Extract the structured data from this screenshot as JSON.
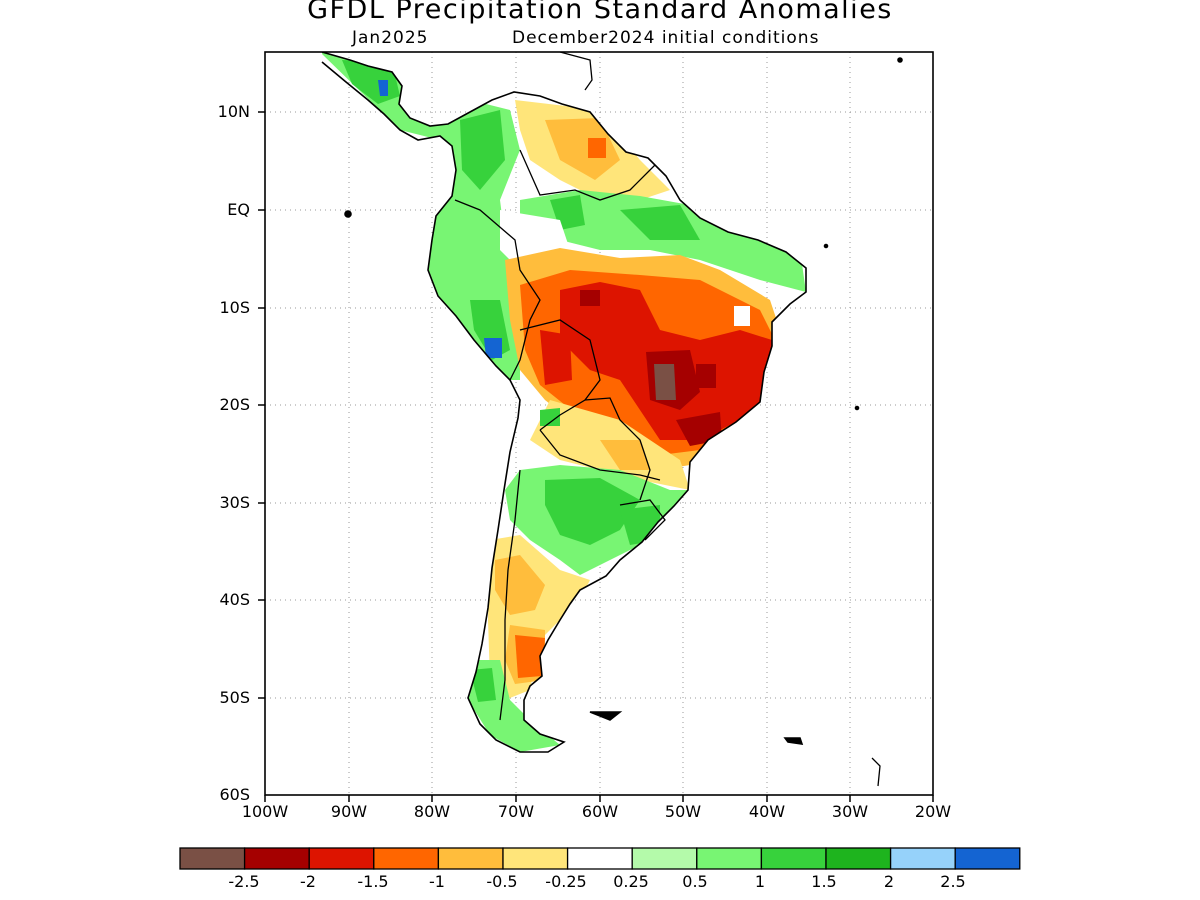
{
  "header": {
    "title": "GFDL Precipitation Standard Anomalies",
    "valid_month": "Jan2025",
    "init_label": "December2024 initial conditions"
  },
  "axes": {
    "lat_labels": [
      "10N",
      "EQ",
      "10S",
      "20S",
      "30S",
      "40S",
      "50S",
      "60S"
    ],
    "lon_labels": [
      "100W",
      "90W",
      "80W",
      "70W",
      "60W",
      "50W",
      "40W",
      "30W",
      "20W"
    ]
  },
  "colorbar": {
    "labels": [
      "-2.5",
      "-2",
      "-1.5",
      "-1",
      "-0.5",
      "-0.25",
      "0.25",
      "0.5",
      "1",
      "1.5",
      "2",
      "2.5"
    ],
    "colors": [
      "#7a5045",
      "#a50000",
      "#dd1400",
      "#ff6600",
      "#ffbd3c",
      "#ffe57a",
      "#ffffff",
      "#b4faaa",
      "#78f573",
      "#37d23c",
      "#1eb41e",
      "#96d2fa",
      "#1464d2"
    ]
  },
  "colors": {
    "red_strong": "#dd1400",
    "dark_red": "#a50000",
    "brown": "#7a5045",
    "orange": "#ff6600",
    "light_orange": "#ffbd3c",
    "yellow": "#ffe57a",
    "light_green": "#b4faaa",
    "green": "#78f573",
    "mid_green": "#37d23c",
    "blue": "#1464d2"
  }
}
